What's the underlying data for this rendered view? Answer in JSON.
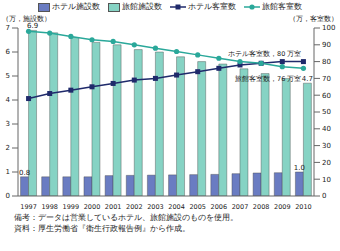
{
  "chart_data": {
    "type": "bar",
    "y_label": "（万，施設数）",
    "y2_label": "（万，客室数）",
    "categories": [
      "1997",
      "1998",
      "1999",
      "2000",
      "2001",
      "2002",
      "2003",
      "2004",
      "2005",
      "2006",
      "2007",
      "2008",
      "2009",
      "2010"
    ],
    "series": [
      {
        "name": "ホテル施設数",
        "type": "bar",
        "color": "#6a7cc2",
        "values": [
          0.8,
          0.8,
          0.8,
          0.8,
          0.85,
          0.86,
          0.87,
          0.88,
          0.89,
          0.9,
          0.93,
          0.96,
          0.97,
          1.0
        ],
        "value_labels": [
          "0.8",
          null,
          null,
          null,
          null,
          null,
          null,
          null,
          null,
          null,
          null,
          null,
          null,
          "1.0"
        ]
      },
      {
        "name": "旅館施設数",
        "type": "bar",
        "color": "#86d3c4",
        "values": [
          6.9,
          6.8,
          6.6,
          6.4,
          6.3,
          6.1,
          6.0,
          5.8,
          5.6,
          5.5,
          5.3,
          5.1,
          4.9,
          4.7
        ],
        "value_labels": [
          "6.9",
          null,
          null,
          null,
          null,
          null,
          null,
          null,
          null,
          null,
          null,
          null,
          null,
          "4.7"
        ]
      },
      {
        "name": "ホテル客室数",
        "type": "line",
        "axis": "y2",
        "color": "#1f2a6b",
        "marker": "square",
        "values": [
          58,
          61,
          63,
          65,
          67,
          69,
          70,
          72,
          74,
          76,
          78,
          79,
          80,
          80
        ]
      },
      {
        "name": "旅館客室数",
        "type": "line",
        "axis": "y2",
        "color": "#2aa89a",
        "marker": "circle",
        "values": [
          98,
          97,
          95,
          93,
          92,
          90,
          88,
          86,
          84,
          82,
          80,
          79,
          77,
          76
        ]
      }
    ],
    "ylim": [
      0,
      7
    ],
    "yticks": [
      0,
      1,
      2,
      3,
      4,
      5,
      6,
      7
    ],
    "y2lim": [
      0,
      100
    ],
    "y2ticks": [
      0,
      10,
      20,
      30,
      40,
      50,
      60,
      70,
      80,
      90,
      100
    ],
    "grid": false,
    "data_labels": true,
    "annotations": [
      {
        "x": "2010",
        "y": 80,
        "axis": "y2",
        "text": "ホテル客室数，80 万室",
        "position": "above"
      },
      {
        "x": "2010",
        "y": 76,
        "axis": "y2",
        "text": "旅館客室数，76 万室",
        "position": "below"
      }
    ],
    "notes": [
      "備考：データは営業しているホテル、旅館施設のものを使用。",
      "資料：厚生労働省『衛生行政報告例』から作成。"
    ]
  }
}
